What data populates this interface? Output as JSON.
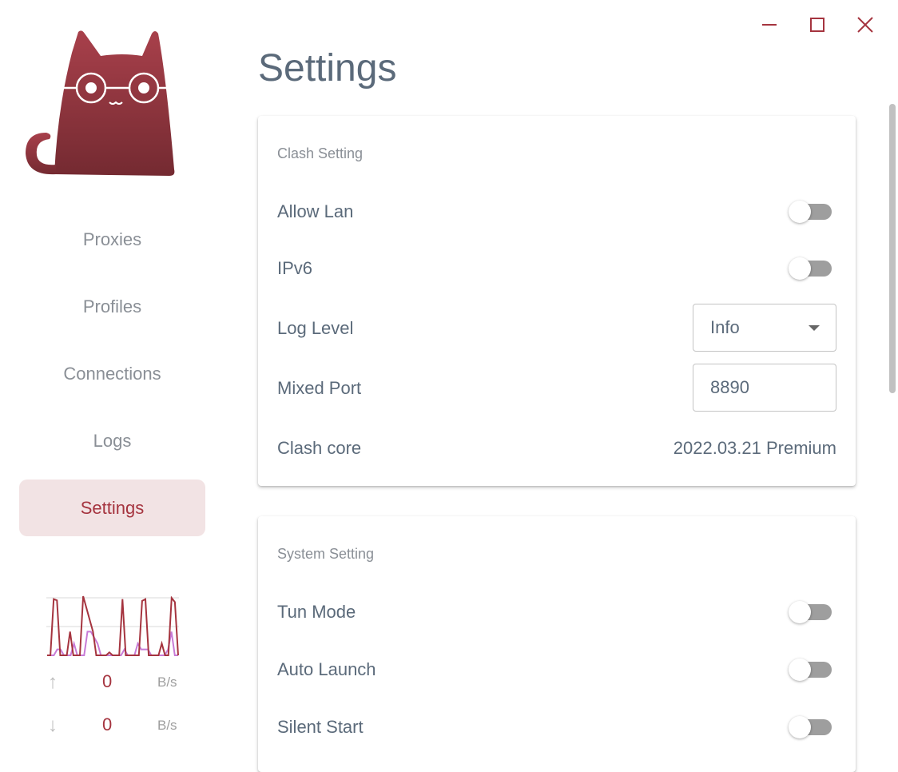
{
  "window": {
    "controls": [
      "minimize",
      "maximize",
      "close"
    ],
    "accent": "#a5343f"
  },
  "sidebar": {
    "logo": "clash-verge-cat-logo",
    "items": [
      {
        "label": "Proxies",
        "active": false
      },
      {
        "label": "Profiles",
        "active": false
      },
      {
        "label": "Connections",
        "active": false
      },
      {
        "label": "Logs",
        "active": false
      },
      {
        "label": "Settings",
        "active": true
      }
    ],
    "traffic": {
      "upload": {
        "value": "0",
        "unit": "B/s"
      },
      "download": {
        "value": "0",
        "unit": "B/s"
      },
      "graph": {
        "up": [
          0,
          0,
          0,
          1,
          1,
          0,
          0,
          0,
          2,
          0,
          0,
          0,
          4,
          4,
          3,
          2,
          0,
          0,
          0,
          0,
          0,
          0,
          0,
          1,
          0,
          0,
          0,
          2,
          1,
          1,
          1,
          0,
          0,
          0,
          0,
          0,
          1,
          4,
          0,
          0
        ],
        "down": [
          0,
          0,
          9.5,
          9.3,
          0,
          0,
          0,
          4,
          0,
          0,
          0,
          10,
          8,
          6,
          4,
          0,
          0,
          0,
          0,
          0.5,
          0,
          0,
          0,
          9.5,
          0,
          0,
          0,
          0,
          0,
          9.2,
          9.5,
          0,
          0,
          0,
          0,
          2,
          0,
          0,
          9.7,
          9,
          0
        ]
      }
    }
  },
  "main": {
    "title": "Settings",
    "clash_setting": {
      "title": "Clash Setting",
      "allow_lan": {
        "label": "Allow Lan",
        "on": false
      },
      "ipv6": {
        "label": "IPv6",
        "on": false
      },
      "log_level": {
        "label": "Log Level",
        "value": "Info"
      },
      "mixed_port": {
        "label": "Mixed Port",
        "value": "8890"
      },
      "clash_core": {
        "label": "Clash core",
        "value": "2022.03.21 Premium"
      }
    },
    "system_setting": {
      "title": "System Setting",
      "tun_mode": {
        "label": "Tun Mode",
        "on": false
      },
      "auto_launch": {
        "label": "Auto Launch",
        "on": false
      },
      "silent_start": {
        "label": "Silent Start",
        "on": false
      }
    }
  }
}
